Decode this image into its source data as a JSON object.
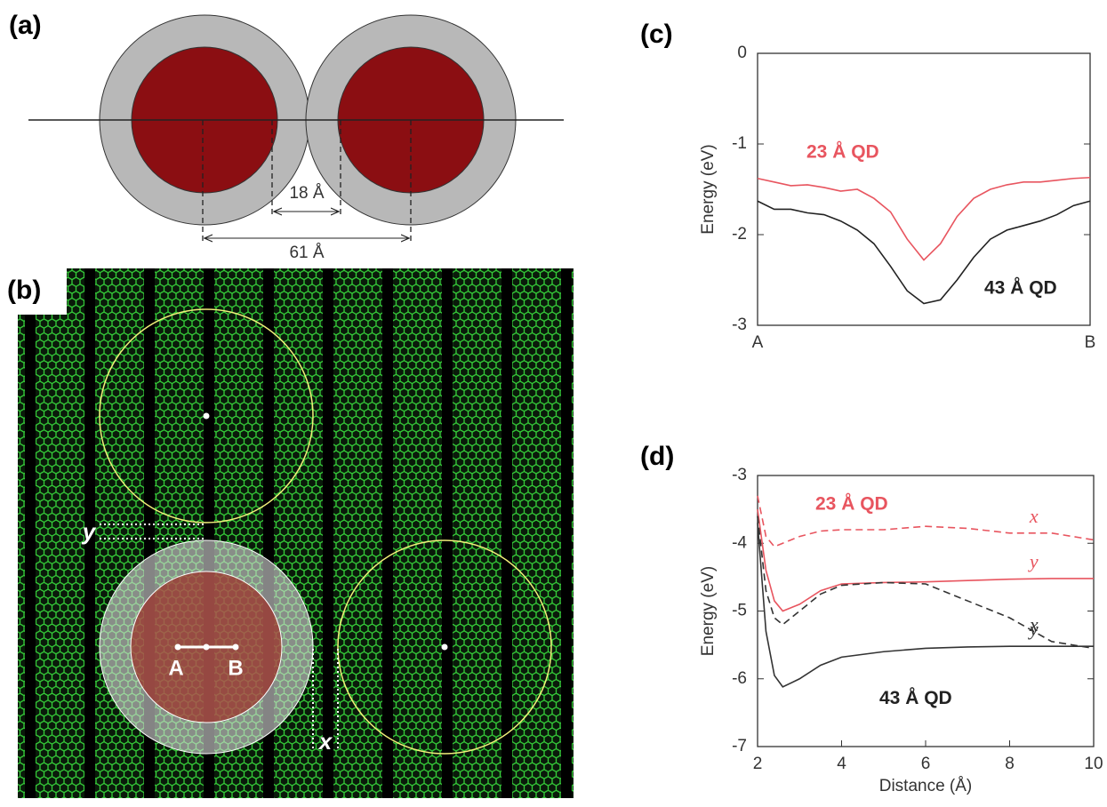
{
  "diagram": {
    "label": "(a)",
    "gap": "18 Å",
    "spacing": "61 Å"
  },
  "image": {
    "label": "(b)",
    "start": "A",
    "end": "B",
    "y_label": "y",
    "x_label": "x"
  },
  "chart_data": [
    {
      "type": "line",
      "panel": "(c)",
      "y_label": "Energy (eV)",
      "x": [
        0,
        0.05,
        0.1,
        0.15,
        0.2,
        0.25,
        0.3,
        0.35,
        0.4,
        0.45,
        0.5,
        0.55,
        0.6,
        0.65,
        0.7,
        0.75,
        0.8,
        0.85,
        0.9,
        0.95,
        1
      ],
      "xlim": [
        0,
        1
      ],
      "xticks": [
        {
          "value": 0,
          "label": "A"
        },
        {
          "value": 1,
          "label": "B"
        }
      ],
      "ylim": [
        -3,
        0
      ],
      "yticks": [
        0,
        -1,
        -2,
        -3
      ],
      "series": [
        {
          "name": "23 Å QD",
          "color": "#e8555f",
          "dash": false,
          "values": [
            -1.38,
            -1.42,
            -1.46,
            -1.45,
            -1.48,
            -1.52,
            -1.5,
            -1.6,
            -1.75,
            -2.05,
            -2.28,
            -2.1,
            -1.8,
            -1.6,
            -1.5,
            -1.45,
            -1.42,
            -1.42,
            -1.4,
            -1.38,
            -1.37
          ]
        },
        {
          "name": "43 Å QD",
          "color": "#222222",
          "dash": false,
          "values": [
            -1.63,
            -1.72,
            -1.72,
            -1.76,
            -1.78,
            -1.85,
            -1.95,
            -2.1,
            -2.35,
            -2.62,
            -2.76,
            -2.72,
            -2.5,
            -2.25,
            -2.05,
            -1.95,
            -1.9,
            -1.85,
            -1.78,
            -1.68,
            -1.63
          ]
        }
      ]
    },
    {
      "type": "line",
      "panel": "(d)",
      "y_label": "Energy (eV)",
      "x_label": "Distance (Å)",
      "annotations": [
        "23 Å QD",
        "43 Å QD"
      ],
      "x": [
        2,
        2.2,
        2.4,
        2.6,
        3,
        3.5,
        4,
        5,
        6,
        7,
        8,
        9,
        10
      ],
      "xlim": [
        2,
        10
      ],
      "xticks": [
        2,
        4,
        6,
        8,
        10
      ],
      "ylim": [
        -7,
        -3
      ],
      "yticks": [
        -3,
        -4,
        -5,
        -6,
        -7
      ],
      "series": [
        {
          "name": "x",
          "color": "#e8555f",
          "dash": true,
          "values": [
            -3.3,
            -3.9,
            -4.05,
            -4.0,
            -3.9,
            -3.82,
            -3.8,
            -3.8,
            -3.75,
            -3.78,
            -3.85,
            -3.85,
            -3.95
          ]
        },
        {
          "name": "y",
          "color": "#e8555f",
          "dash": false,
          "values": [
            -3.5,
            -4.4,
            -4.85,
            -5.0,
            -4.9,
            -4.7,
            -4.6,
            -4.58,
            -4.57,
            -4.55,
            -4.53,
            -4.52,
            -4.52
          ]
        },
        {
          "name": "x",
          "color": "#333333",
          "dash": true,
          "values": [
            -3.6,
            -4.7,
            -5.1,
            -5.2,
            -5.0,
            -4.75,
            -4.62,
            -4.58,
            -4.6,
            -4.85,
            -5.1,
            -5.45,
            -5.55
          ]
        },
        {
          "name": "y",
          "color": "#333333",
          "dash": false,
          "values": [
            -3.7,
            -5.3,
            -5.95,
            -6.12,
            -6.0,
            -5.8,
            -5.68,
            -5.6,
            -5.55,
            -5.53,
            -5.52,
            -5.52,
            -5.52
          ]
        }
      ]
    }
  ]
}
